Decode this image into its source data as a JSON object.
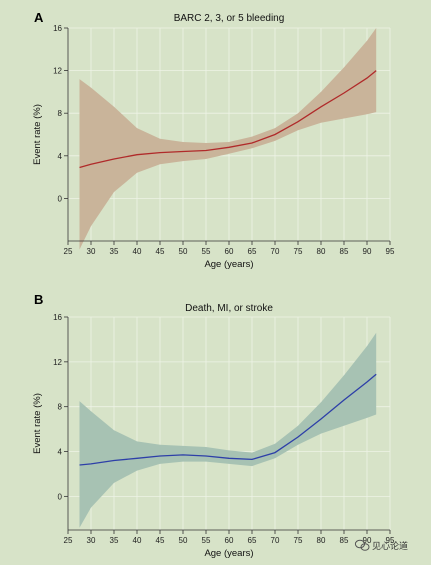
{
  "chart_data": [
    {
      "type": "line",
      "panel_label": "A",
      "title": "BARC 2, 3, or 5 bleeding",
      "xlabel": "Age (years)",
      "ylabel": "Event rate (%)",
      "xlim": [
        25,
        95
      ],
      "ylim": [
        -4,
        16
      ],
      "xticks": [
        25,
        30,
        35,
        40,
        45,
        50,
        55,
        60,
        65,
        70,
        75,
        80,
        85,
        90,
        95
      ],
      "yticks": [
        0,
        4,
        8,
        12,
        16
      ],
      "grid": true,
      "series": [
        {
          "line_color": "#b02a2a",
          "band_color": "#c9b49a",
          "x": [
            27.5,
            30,
            35,
            40,
            45,
            50,
            55,
            60,
            65,
            70,
            75,
            80,
            85,
            90,
            92
          ],
          "y": [
            2.9,
            3.2,
            3.7,
            4.1,
            4.3,
            4.4,
            4.5,
            4.8,
            5.2,
            6.0,
            7.2,
            8.6,
            9.9,
            11.3,
            12.0
          ],
          "lower": [
            -4.8,
            -2.6,
            0.6,
            2.4,
            3.2,
            3.5,
            3.7,
            4.2,
            4.7,
            5.4,
            6.4,
            7.1,
            7.5,
            7.9,
            8.1
          ],
          "upper": [
            11.2,
            10.4,
            8.6,
            6.6,
            5.6,
            5.3,
            5.2,
            5.3,
            5.8,
            6.6,
            8.0,
            10.0,
            12.3,
            14.8,
            16.0
          ]
        }
      ]
    },
    {
      "type": "line",
      "panel_label": "B",
      "title": "Death, MI, or stroke",
      "xlabel": "Age (years)",
      "ylabel": "Event rate (%)",
      "xlim": [
        25,
        95
      ],
      "ylim": [
        -3,
        16
      ],
      "xticks": [
        25,
        30,
        35,
        40,
        45,
        50,
        55,
        60,
        65,
        70,
        75,
        80,
        85,
        90,
        95
      ],
      "yticks": [
        0,
        4,
        8,
        12,
        16
      ],
      "grid": true,
      "series": [
        {
          "line_color": "#2d3fa8",
          "band_color": "#a7c2b3",
          "x": [
            27.5,
            30,
            35,
            40,
            45,
            50,
            55,
            60,
            65,
            70,
            75,
            80,
            85,
            90,
            92
          ],
          "y": [
            2.8,
            2.9,
            3.2,
            3.4,
            3.6,
            3.7,
            3.6,
            3.4,
            3.3,
            3.9,
            5.3,
            6.9,
            8.6,
            10.2,
            10.9
          ],
          "lower": [
            -2.8,
            -1.0,
            1.2,
            2.3,
            2.9,
            3.1,
            3.1,
            2.9,
            2.7,
            3.4,
            4.6,
            5.6,
            6.3,
            7.0,
            7.3
          ],
          "upper": [
            8.5,
            7.6,
            5.9,
            4.9,
            4.6,
            4.5,
            4.4,
            4.1,
            3.9,
            4.7,
            6.3,
            8.4,
            10.8,
            13.4,
            14.6
          ]
        }
      ]
    }
  ],
  "watermark": {
    "text": "见心论道",
    "icon": "wechat-icon"
  }
}
